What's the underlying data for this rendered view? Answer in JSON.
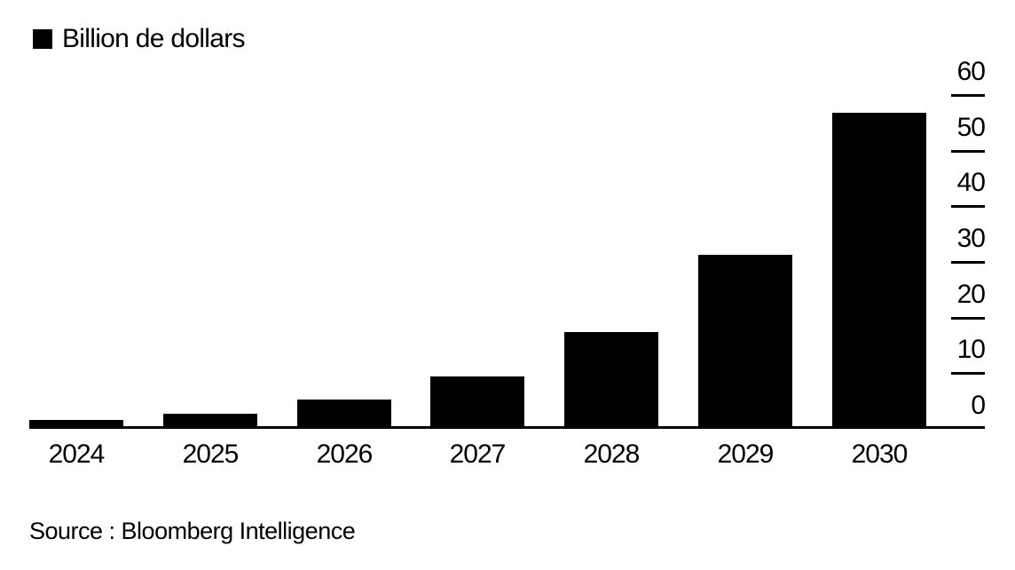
{
  "chart_data": {
    "type": "bar",
    "title": "",
    "legend": "Billion de dollars",
    "categories": [
      "2024",
      "2025",
      "2026",
      "2027",
      "2028",
      "2029",
      "2030"
    ],
    "values": [
      1.3,
      2.4,
      4.9,
      9.1,
      17,
      31,
      56.5
    ],
    "xlabel": "",
    "ylabel": "Billion de dollars",
    "y_ticks": [
      0,
      10,
      20,
      30,
      40,
      50,
      60
    ],
    "ylim": [
      0,
      60
    ],
    "y_axis_side": "right",
    "grid": false,
    "legend_position": "top-left",
    "bar_color": "#000000",
    "background_color": "#ffffff",
    "source": "Source : Bloomberg Intelligence"
  }
}
